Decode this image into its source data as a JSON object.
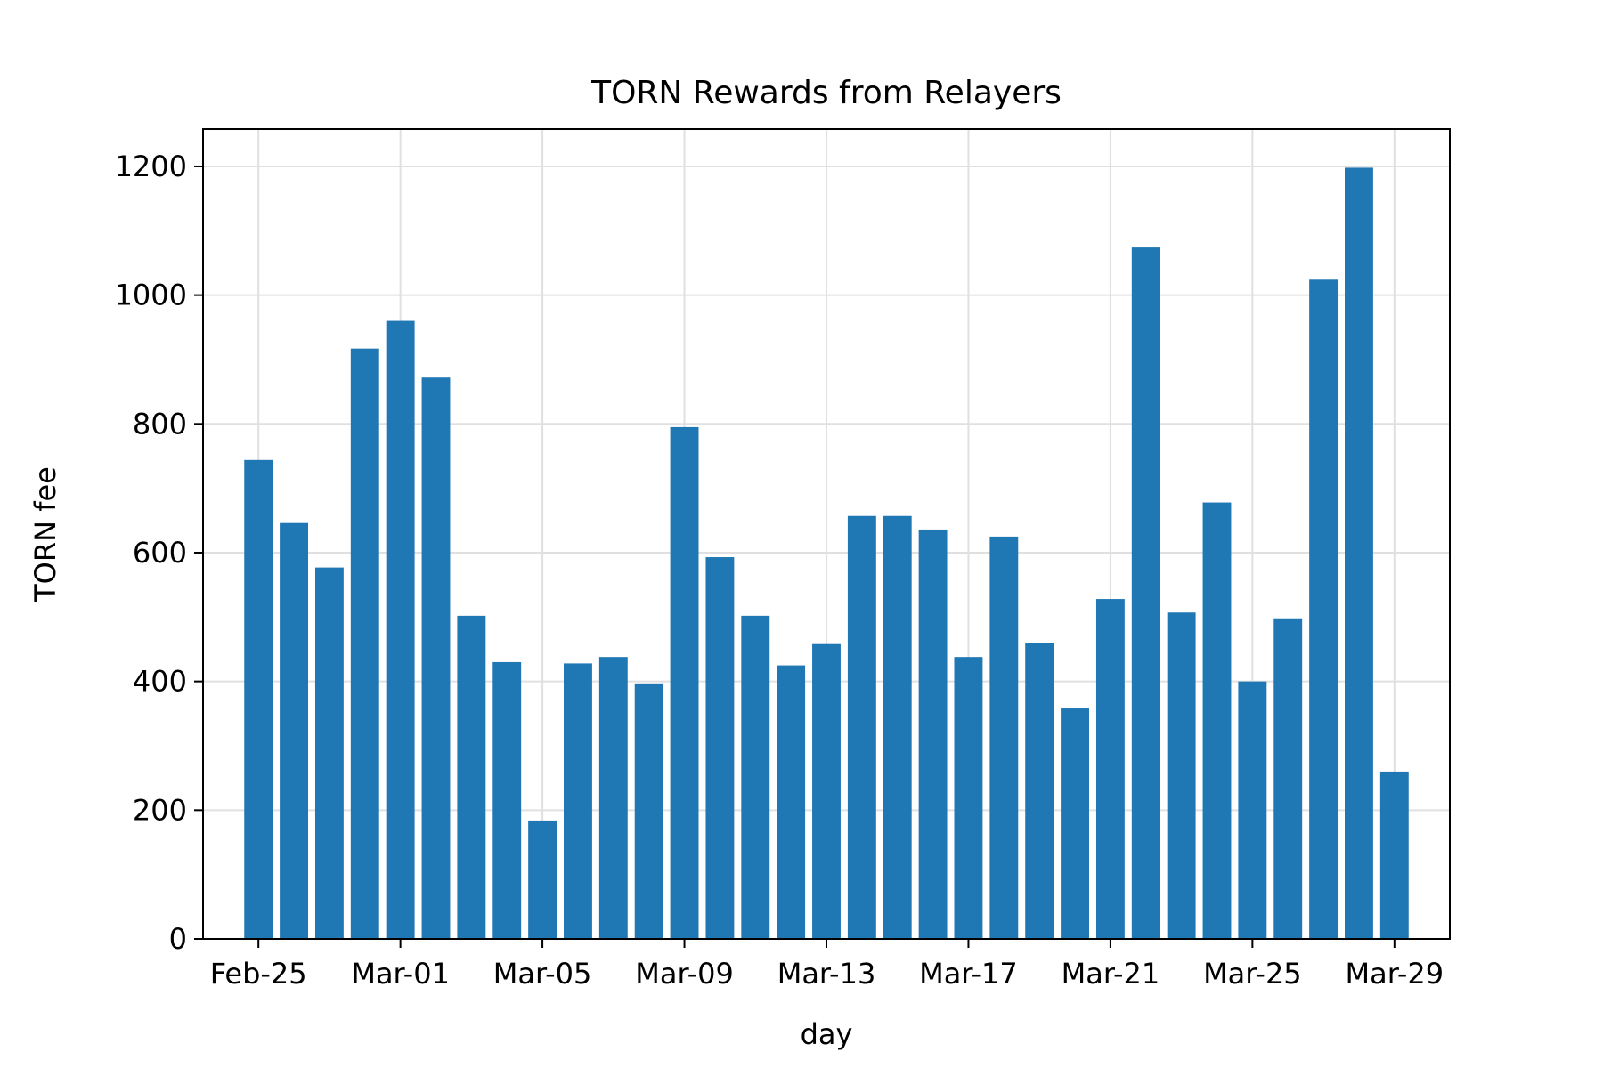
{
  "chart_data": {
    "type": "bar",
    "title": "TORN Rewards from Relayers",
    "xlabel": "day",
    "ylabel": "TORN fee",
    "x_dates": [
      "2022-02-25",
      "2022-02-26",
      "2022-02-27",
      "2022-02-28",
      "2022-03-01",
      "2022-03-02",
      "2022-03-03",
      "2022-03-04",
      "2022-03-05",
      "2022-03-06",
      "2022-03-07",
      "2022-03-08",
      "2022-03-09",
      "2022-03-10",
      "2022-03-11",
      "2022-03-12",
      "2022-03-13",
      "2022-03-14",
      "2022-03-15",
      "2022-03-16",
      "2022-03-17",
      "2022-03-18",
      "2022-03-19",
      "2022-03-20",
      "2022-03-21",
      "2022-03-22",
      "2022-03-23",
      "2022-03-24",
      "2022-03-25",
      "2022-03-26",
      "2022-03-27",
      "2022-03-28",
      "2022-03-29"
    ],
    "values": [
      744,
      646,
      577,
      917,
      960,
      872,
      502,
      430,
      184,
      428,
      438,
      397,
      795,
      593,
      502,
      425,
      458,
      657,
      657,
      636,
      438,
      625,
      460,
      358,
      528,
      1074,
      507,
      678,
      400,
      498,
      1024,
      1198,
      260
    ],
    "xticks": [
      {
        "date": "2022-02-25",
        "label": "Feb-25"
      },
      {
        "date": "2022-03-01",
        "label": "Mar-01"
      },
      {
        "date": "2022-03-05",
        "label": "Mar-05"
      },
      {
        "date": "2022-03-09",
        "label": "Mar-09"
      },
      {
        "date": "2022-03-13",
        "label": "Mar-13"
      },
      {
        "date": "2022-03-17",
        "label": "Mar-17"
      },
      {
        "date": "2022-03-21",
        "label": "Mar-21"
      },
      {
        "date": "2022-03-25",
        "label": "Mar-25"
      },
      {
        "date": "2022-03-29",
        "label": "Mar-29"
      }
    ],
    "yticks": [
      0,
      200,
      400,
      600,
      800,
      1000,
      1200
    ],
    "ylim": [
      0,
      1258
    ],
    "grid": true,
    "bar_color": "#1f77b4"
  }
}
